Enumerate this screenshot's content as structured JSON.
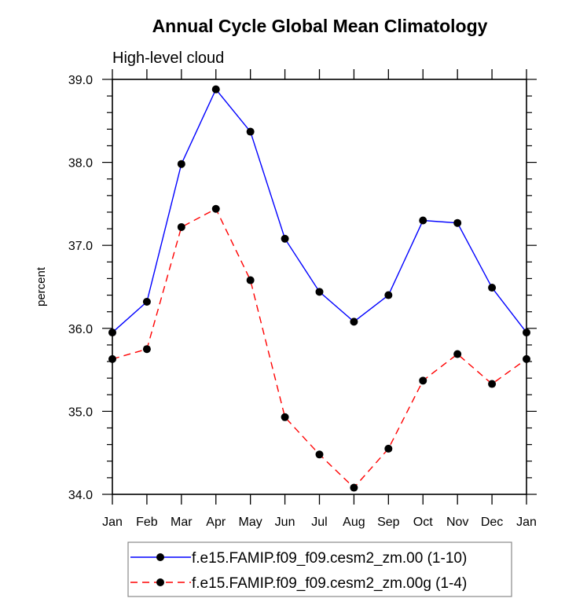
{
  "chart_data": {
    "type": "line",
    "title": "Annual Cycle Global Mean Climatology",
    "subtitle": "High-level cloud",
    "xlabel": "",
    "ylabel": "percent",
    "categories": [
      "Jan",
      "Feb",
      "Mar",
      "Apr",
      "May",
      "Jun",
      "Jul",
      "Aug",
      "Sep",
      "Oct",
      "Nov",
      "Dec",
      "Jan"
    ],
    "ylim": [
      34.0,
      39.0
    ],
    "yticks": [
      "34.0",
      "35.0",
      "36.0",
      "37.0",
      "38.0",
      "39.0"
    ],
    "ytick_values": [
      34.0,
      35.0,
      36.0,
      37.0,
      38.0,
      39.0
    ],
    "y_minor_step": 0.2,
    "grid": false,
    "legend_position": "bottom",
    "series": [
      {
        "name": "f.e15.FAMIP.f09_f09.cesm2_zm.00 (1-10)",
        "color": "#0000ff",
        "style": "solid",
        "marker": "circle",
        "values": [
          35.95,
          36.32,
          37.98,
          38.88,
          38.37,
          37.08,
          36.44,
          36.08,
          36.4,
          37.3,
          37.27,
          36.49,
          35.95
        ]
      },
      {
        "name": "f.e15.FAMIP.f09_f09.cesm2_zm.00g (1-4)",
        "color": "#ff0000",
        "style": "dashed",
        "marker": "circle",
        "values": [
          35.63,
          35.75,
          37.22,
          37.44,
          36.58,
          34.93,
          34.48,
          34.08,
          34.55,
          35.37,
          35.69,
          35.33,
          35.63
        ]
      }
    ]
  }
}
